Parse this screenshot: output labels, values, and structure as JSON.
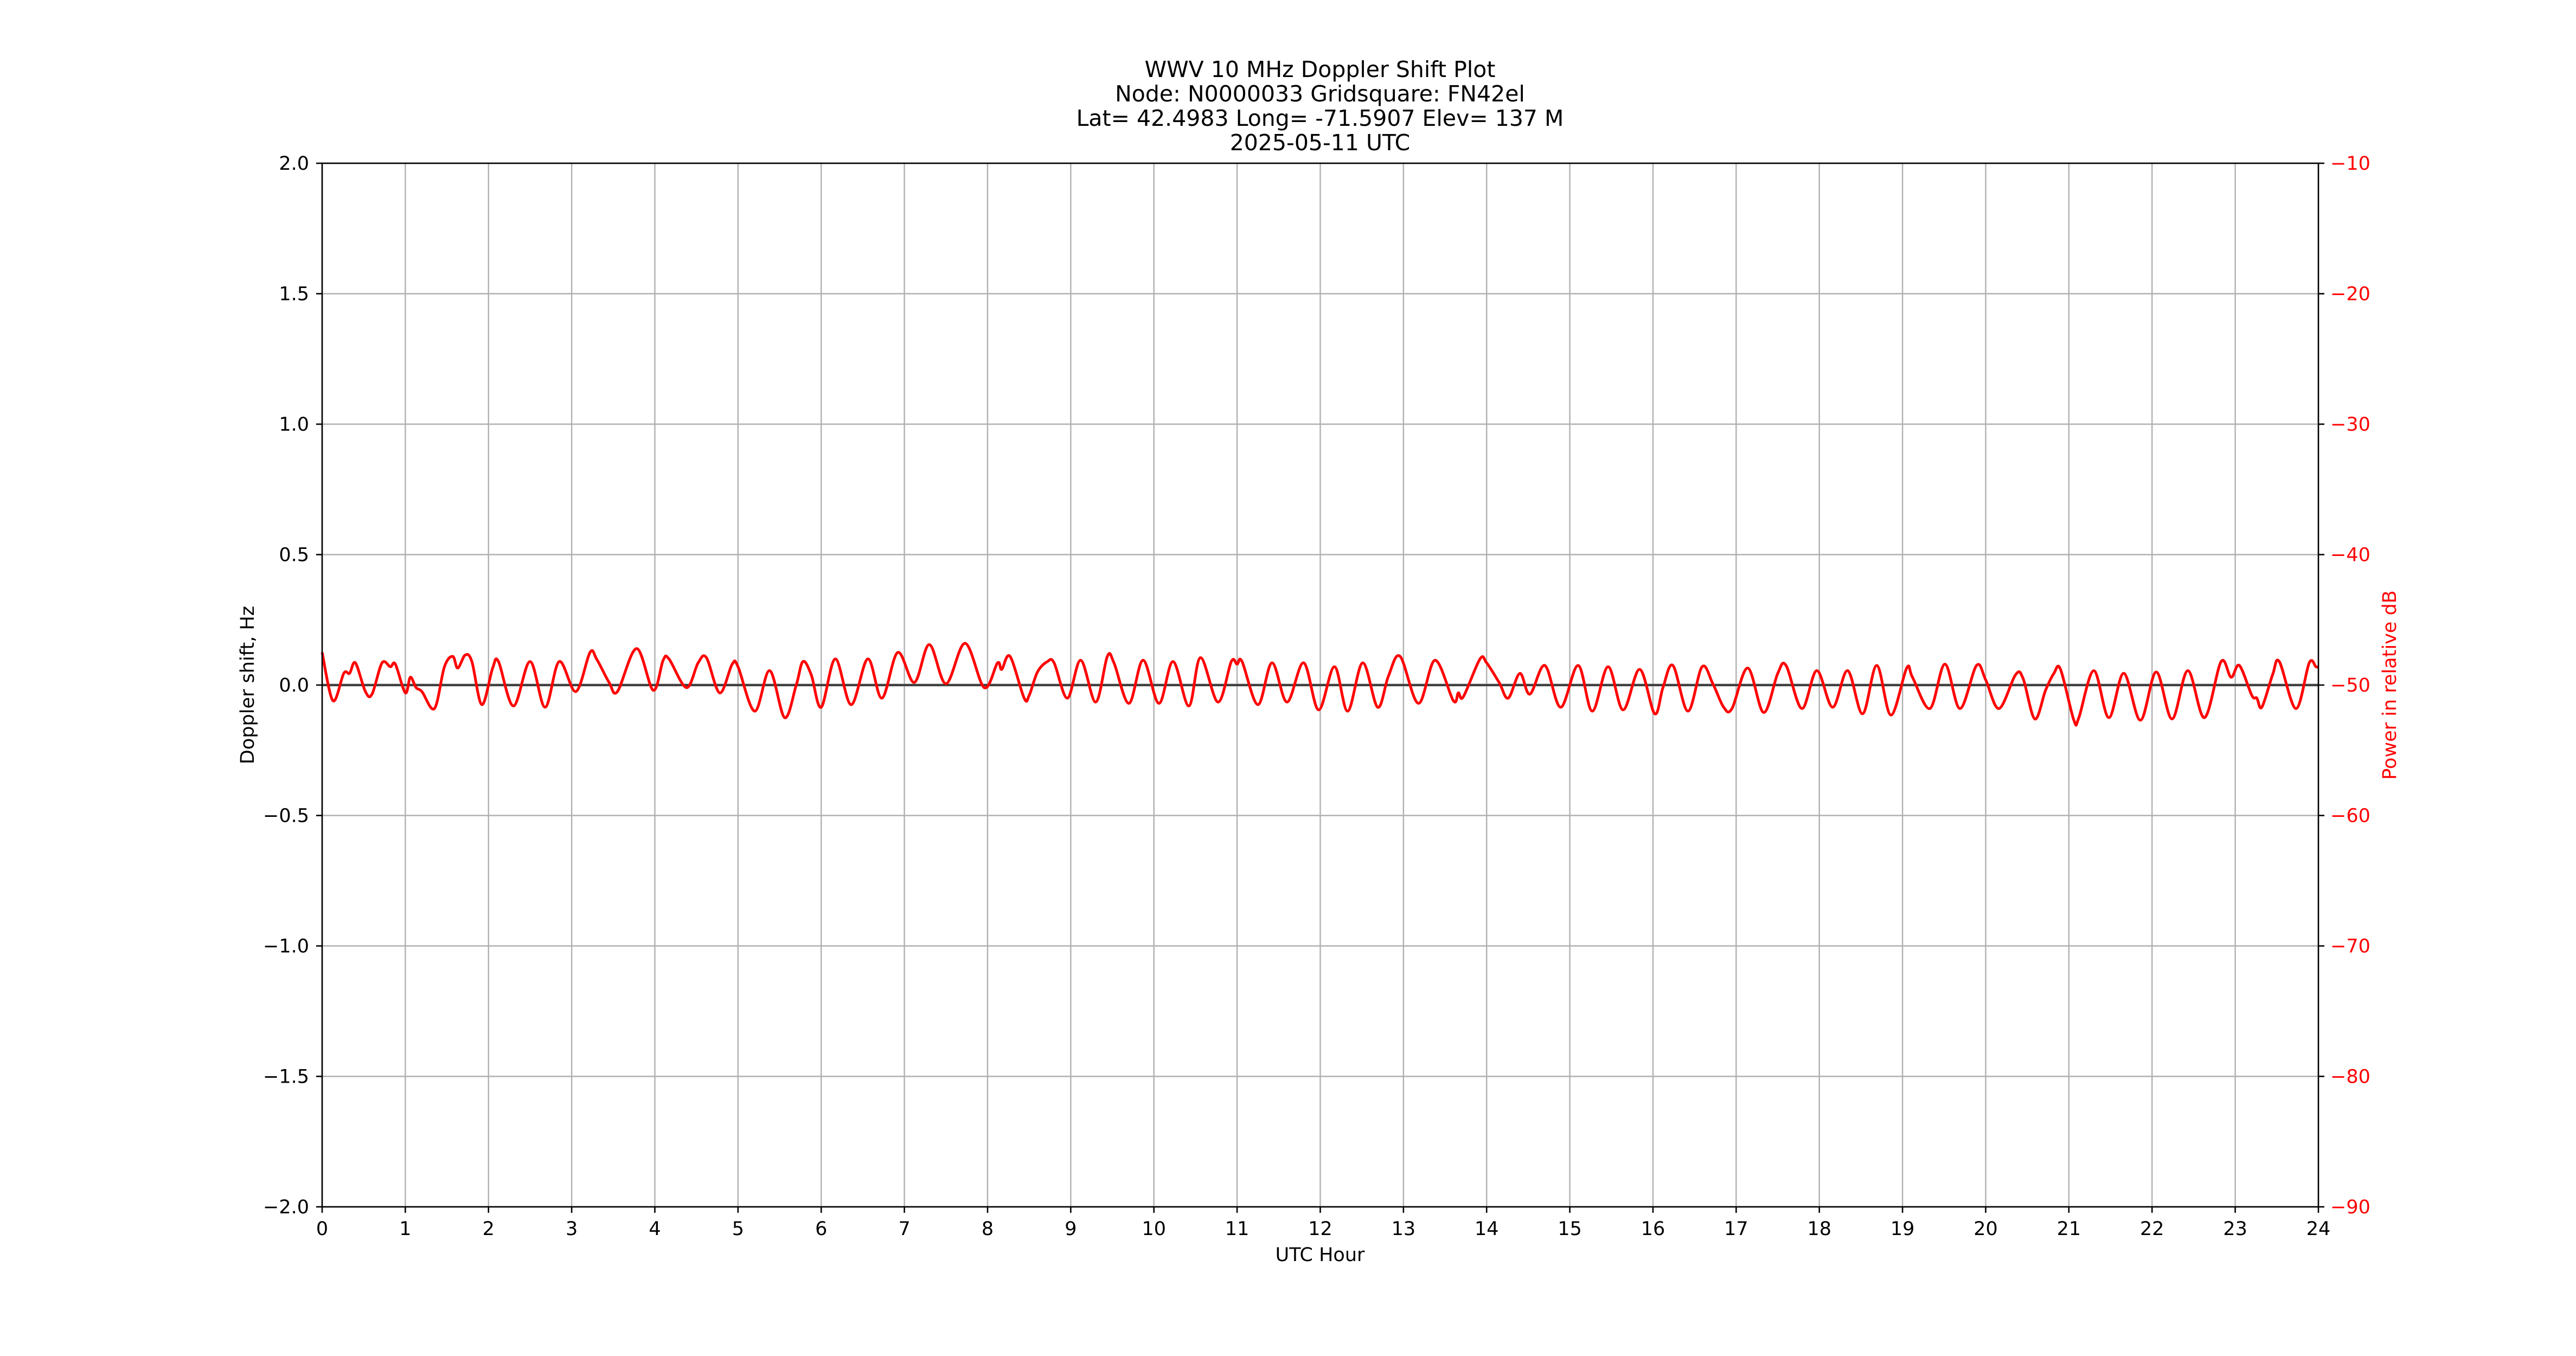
{
  "figure": {
    "title_lines": [
      "WWV 10 MHz Doppler Shift Plot",
      "Node:  N0000033     Gridsquare:  FN42el",
      "Lat= 42.4983    Long= -71.5907    Elev= 137 M",
      "2025-05-11  UTC"
    ],
    "background": "#ffffff"
  },
  "chart_data": {
    "type": "line",
    "title": "WWV 10 MHz Doppler Shift Plot",
    "subtitle": [
      "Node:  N0000033     Gridsquare:  FN42el",
      "Lat= 42.4983    Long= -71.5907    Elev= 137 M",
      "2025-05-11  UTC"
    ],
    "xlabel": "UTC Hour",
    "ylabel": "Doppler shift, Hz",
    "ylabel_right": "Power in relative dB",
    "xlim": [
      0,
      24
    ],
    "ylim": [
      -2.0,
      2.0
    ],
    "ylim_right": [
      -90,
      -10
    ],
    "x_ticks": [
      "0",
      "1",
      "2",
      "3",
      "4",
      "5",
      "6",
      "7",
      "8",
      "9",
      "10",
      "11",
      "12",
      "13",
      "14",
      "15",
      "16",
      "17",
      "18",
      "19",
      "20",
      "21",
      "22",
      "23",
      "24"
    ],
    "y_ticks": [
      "2.0",
      "1.5",
      "1.0",
      "0.5",
      "0.0",
      "−0.5",
      "−1.0",
      "−1.5",
      "−2.0"
    ],
    "y_ticks_right": [
      "−10",
      "−20",
      "−30",
      "−40",
      "−50",
      "−60",
      "−70",
      "−80",
      "−90"
    ],
    "grid": true,
    "legend": null,
    "colors": {
      "doppler": "#1a1a1a",
      "power": "#ff0000",
      "grid": "#b0b0b0",
      "axis": "#000000",
      "right_axis": "#ff0000"
    },
    "series": [
      {
        "name": "Doppler shift, Hz",
        "axis": "left",
        "color": "#1a1a1a",
        "x": [
          0,
          6,
          12,
          18,
          24
        ],
        "values": [
          0.0,
          0.0,
          0.0,
          0.0,
          0.0
        ]
      },
      {
        "name": "Power in relative dB",
        "axis": "right",
        "color": "#ff0000",
        "x": [
          0.0,
          0.13,
          0.26,
          0.33,
          0.4,
          0.52,
          0.6,
          0.72,
          0.82,
          0.88,
          1.0,
          1.06,
          1.13,
          1.2,
          1.35,
          1.47,
          1.57,
          1.63,
          1.72,
          1.8,
          1.92,
          2.05,
          2.12,
          2.3,
          2.5,
          2.68,
          2.85,
          3.05,
          3.22,
          3.3,
          3.45,
          3.55,
          3.78,
          3.98,
          4.1,
          4.17,
          4.38,
          4.52,
          4.62,
          4.78,
          4.93,
          5.0,
          5.2,
          5.38,
          5.56,
          5.7,
          5.78,
          5.88,
          6.0,
          6.17,
          6.36,
          6.56,
          6.73,
          6.92,
          7.12,
          7.3,
          7.5,
          7.73,
          7.96,
          8.12,
          8.17,
          8.27,
          8.44,
          8.5,
          8.6,
          8.72,
          8.8,
          8.96,
          9.12,
          9.3,
          9.44,
          9.52,
          9.7,
          9.87,
          10.06,
          10.23,
          10.42,
          10.56,
          10.77,
          10.93,
          11.0,
          11.06,
          11.25,
          11.42,
          11.6,
          11.8,
          11.98,
          12.17,
          12.33,
          12.51,
          12.69,
          12.82,
          12.96,
          13.18,
          13.38,
          13.6,
          13.66,
          13.72,
          13.92,
          14.0,
          14.15,
          14.26,
          14.4,
          14.52,
          14.7,
          14.89,
          15.1,
          15.27,
          15.46,
          15.64,
          15.84,
          16.02,
          16.12,
          16.24,
          16.42,
          16.59,
          16.72,
          16.85,
          16.95,
          17.14,
          17.33,
          17.5,
          17.6,
          17.79,
          17.97,
          18.16,
          18.34,
          18.52,
          18.69,
          18.86,
          19.05,
          19.12,
          19.33,
          19.51,
          19.69,
          19.89,
          20.0,
          20.16,
          20.36,
          20.45,
          20.59,
          20.72,
          20.82,
          20.9,
          21.06,
          21.12,
          21.3,
          21.48,
          21.66,
          21.86,
          22.05,
          22.24,
          22.43,
          22.63,
          22.83,
          22.95,
          23.05,
          23.2,
          23.26,
          23.32,
          23.45,
          23.53,
          23.73,
          23.89,
          23.97,
          24.0
        ],
        "values": [
          -47.5,
          -51.2,
          -49.1,
          -49.1,
          -48.3,
          -50.5,
          -50.7,
          -48.3,
          -48.6,
          -48.4,
          -50.6,
          -49.4,
          -50.2,
          -50.5,
          -51.8,
          -48.6,
          -47.8,
          -48.7,
          -47.7,
          -48.2,
          -51.5,
          -48.7,
          -48.2,
          -51.6,
          -48.2,
          -51.7,
          -48.2,
          -50.5,
          -47.5,
          -48.0,
          -49.8,
          -50.5,
          -47.2,
          -50.4,
          -48.1,
          -48.0,
          -50.2,
          -48.3,
          -47.9,
          -50.6,
          -48.4,
          -48.6,
          -52.0,
          -48.9,
          -52.5,
          -50.0,
          -48.2,
          -49.2,
          -51.7,
          -48.0,
          -51.5,
          -48.0,
          -51.0,
          -47.5,
          -49.8,
          -46.9,
          -49.9,
          -46.8,
          -50.2,
          -48.3,
          -48.8,
          -47.8,
          -51.0,
          -50.8,
          -49.0,
          -48.2,
          -48.3,
          -51.0,
          -48.1,
          -51.3,
          -47.8,
          -48.3,
          -51.4,
          -48.1,
          -51.4,
          -48.2,
          -51.6,
          -47.9,
          -51.3,
          -48.2,
          -48.4,
          -48.2,
          -51.5,
          -48.3,
          -51.3,
          -48.3,
          -51.9,
          -48.6,
          -52.0,
          -48.3,
          -51.7,
          -49.3,
          -47.8,
          -51.4,
          -48.1,
          -51.2,
          -50.6,
          -50.9,
          -48.0,
          -48.3,
          -49.8,
          -51.0,
          -49.1,
          -50.7,
          -48.5,
          -51.7,
          -48.5,
          -52.0,
          -48.6,
          -51.9,
          -48.8,
          -52.2,
          -50.2,
          -48.5,
          -52.0,
          -48.6,
          -49.9,
          -51.7,
          -51.8,
          -48.7,
          -52.1,
          -49.1,
          -48.5,
          -51.8,
          -48.9,
          -51.7,
          -48.9,
          -52.2,
          -48.5,
          -52.3,
          -48.7,
          -49.4,
          -51.8,
          -48.4,
          -51.8,
          -48.5,
          -49.6,
          -51.8,
          -49.2,
          -49.5,
          -52.6,
          -50.4,
          -49.1,
          -48.8,
          -52.7,
          -52.5,
          -48.9,
          -52.5,
          -49.1,
          -52.7,
          -49.0,
          -52.6,
          -48.9,
          -52.5,
          -48.2,
          -49.4,
          -48.5,
          -50.8,
          -51.0,
          -51.7,
          -49.2,
          -48.2,
          -51.8,
          -48.3,
          -48.6,
          -48.6
        ]
      }
    ]
  }
}
